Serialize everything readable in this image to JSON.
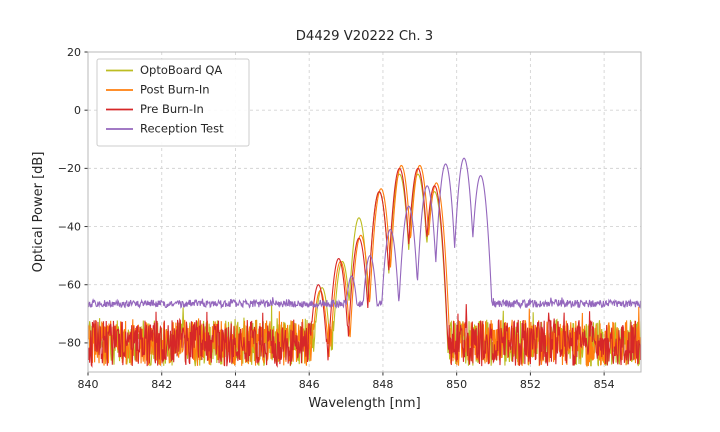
{
  "chart_data": {
    "type": "line",
    "title": "D4429 V20222 Ch. 3",
    "xlabel": "Wavelength [nm]",
    "ylabel": "Optical Power [dB]",
    "xlim": [
      840,
      855
    ],
    "ylim": [
      -90,
      20
    ],
    "xticks": [
      840,
      842,
      844,
      846,
      848,
      850,
      852,
      854
    ],
    "yticks": [
      20,
      0,
      -20,
      -40,
      -60,
      -80
    ],
    "grid": true,
    "grid_style": "dashed",
    "legend_position": "upper-left",
    "background_color": "#ffffff",
    "grid_color": "#d4d4d4",
    "series": [
      {
        "name": "OptoBoard QA",
        "color": "#bcbd22",
        "noise_floor": -80,
        "noise_amp": 8,
        "mode_width": 0.29,
        "seed": 11,
        "modes": [
          [
            846.35,
            -61
          ],
          [
            846.9,
            -52
          ],
          [
            847.35,
            -37
          ],
          [
            847.9,
            -28
          ],
          [
            848.45,
            -22
          ],
          [
            848.95,
            -22
          ],
          [
            849.4,
            -28
          ]
        ]
      },
      {
        "name": "Post Burn-In",
        "color": "#ff7f0e",
        "noise_floor": -80,
        "noise_amp": 8,
        "mode_width": 0.29,
        "seed": 22,
        "modes": [
          [
            846.3,
            -62
          ],
          [
            846.85,
            -52
          ],
          [
            847.4,
            -43
          ],
          [
            847.95,
            -27
          ],
          [
            848.5,
            -19
          ],
          [
            849.0,
            -19
          ],
          [
            849.45,
            -25
          ]
        ]
      },
      {
        "name": "Pre Burn-In",
        "color": "#d62728",
        "noise_floor": -80,
        "noise_amp": 8,
        "mode_width": 0.29,
        "seed": 33,
        "modes": [
          [
            846.25,
            -60
          ],
          [
            846.8,
            -51
          ],
          [
            847.35,
            -44
          ],
          [
            847.9,
            -28
          ],
          [
            848.45,
            -20
          ],
          [
            848.95,
            -20
          ],
          [
            849.4,
            -26
          ]
        ]
      },
      {
        "name": "Reception Test",
        "color": "#9467bd",
        "noise_floor": -66.5,
        "noise_amp": 1.3,
        "mode_width": 0.27,
        "seed": 44,
        "modes": [
          [
            847.15,
            -57
          ],
          [
            847.65,
            -50
          ],
          [
            848.2,
            -41
          ],
          [
            848.7,
            -33
          ],
          [
            849.2,
            -26
          ],
          [
            849.7,
            -18.5
          ],
          [
            850.2,
            -16.5
          ],
          [
            850.65,
            -22.5
          ]
        ]
      }
    ]
  }
}
